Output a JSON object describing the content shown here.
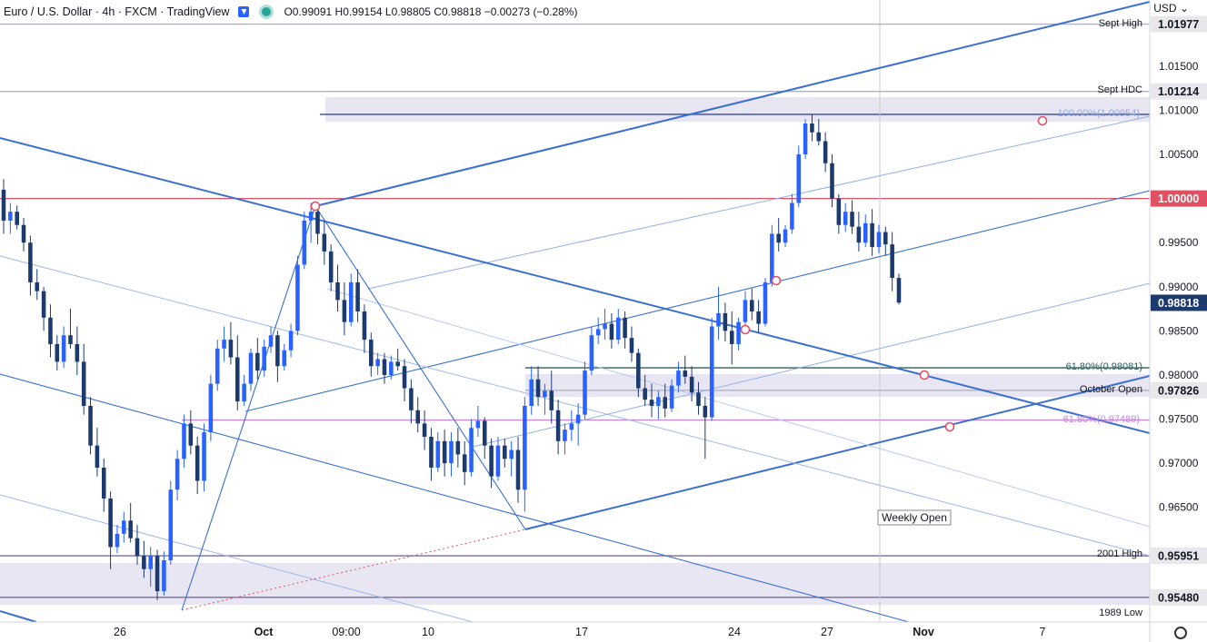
{
  "header": {
    "symbol": "Euro / U.S. Dollar · 4h · FXCM · TradingView",
    "open": "O0.99091",
    "high": "H0.99154",
    "low": "L0.98805",
    "close": "C0.98818",
    "change": "−0.00273 (−0.28%)",
    "currency": "USD"
  },
  "colors": {
    "bull": "#2962ff",
    "bear": "#1c3a6e",
    "trend": "#3a6fd1",
    "red": "#e05263",
    "zone": "#e9e6f4"
  },
  "chart_data": {
    "type": "candlestick",
    "x_ticks": [
      "26",
      "Oct",
      "09:00",
      "10",
      "17",
      "24",
      "27",
      "Nov",
      "7"
    ],
    "y_ticks": [
      1.015,
      1.01,
      1.005,
      0.995,
      0.99,
      0.985,
      0.98,
      0.975,
      0.97,
      0.965
    ],
    "y_range": [
      0.952,
      1.0225
    ],
    "price_badges": [
      {
        "value": "1.01977"
      },
      {
        "value": "1.01214"
      },
      {
        "value": "1.00000"
      },
      {
        "value": "0.98818"
      },
      {
        "value": "0.97826"
      },
      {
        "value": "0.95951"
      },
      {
        "value": "0.95480"
      }
    ],
    "level_labels": {
      "sept_high": "Sept High",
      "sept_hdc": "Sept HDC",
      "fib100": "100.00%(1.00954)",
      "fib618_a": "61.80%(0.98081)",
      "october_open": "October Open",
      "fib618_b": "61.80%(0.97489)",
      "high_2001": "2001 High",
      "low_1989": "1989 Low",
      "weekly_open": "Weekly Open"
    },
    "levels": {
      "sept_high": 1.01977,
      "sept_hdc": 1.01214,
      "fib100": 1.00954,
      "parity": 1.0,
      "fib618_a": 0.98081,
      "october_open": 0.97826,
      "fib618_b": 0.97489,
      "high_2001": 0.95951,
      "low_1989": 0.9548
    },
    "ohlc": [
      [
        1.001,
        1.0022,
        0.996,
        0.9975
      ],
      [
        0.9975,
        0.9995,
        0.996,
        0.9985
      ],
      [
        0.9985,
        0.9992,
        0.9965,
        0.997
      ],
      [
        0.997,
        0.9978,
        0.994,
        0.995
      ],
      [
        0.995,
        0.9958,
        0.989,
        0.9905
      ],
      [
        0.9905,
        0.992,
        0.9885,
        0.9895
      ],
      [
        0.9895,
        0.99,
        0.985,
        0.9865
      ],
      [
        0.9865,
        0.988,
        0.982,
        0.9835
      ],
      [
        0.9835,
        0.9845,
        0.9805,
        0.9815
      ],
      [
        0.9815,
        0.9855,
        0.9808,
        0.9845
      ],
      [
        0.9845,
        0.9875,
        0.983,
        0.9835
      ],
      [
        0.9835,
        0.9855,
        0.98,
        0.9815
      ],
      [
        0.9815,
        0.9835,
        0.9755,
        0.9765
      ],
      [
        0.9765,
        0.9775,
        0.971,
        0.972
      ],
      [
        0.972,
        0.974,
        0.9685,
        0.9695
      ],
      [
        0.9695,
        0.9705,
        0.9645,
        0.966
      ],
      [
        0.966,
        0.9668,
        0.958,
        0.9605
      ],
      [
        0.9605,
        0.963,
        0.9598,
        0.962
      ],
      [
        0.962,
        0.9645,
        0.961,
        0.9635
      ],
      [
        0.9635,
        0.9655,
        0.961,
        0.9615
      ],
      [
        0.9615,
        0.963,
        0.9585,
        0.9595
      ],
      [
        0.9595,
        0.9612,
        0.957,
        0.958
      ],
      [
        0.958,
        0.9605,
        0.956,
        0.9595
      ],
      [
        0.9595,
        0.9602,
        0.9545,
        0.9555
      ],
      [
        0.9555,
        0.96,
        0.955,
        0.959
      ],
      [
        0.959,
        0.968,
        0.9585,
        0.967
      ],
      [
        0.967,
        0.9715,
        0.9658,
        0.9705
      ],
      [
        0.9705,
        0.9755,
        0.9695,
        0.9745
      ],
      [
        0.9745,
        0.976,
        0.971,
        0.972
      ],
      [
        0.972,
        0.973,
        0.9665,
        0.968
      ],
      [
        0.968,
        0.9745,
        0.9668,
        0.9735
      ],
      [
        0.9735,
        0.98,
        0.9725,
        0.979
      ],
      [
        0.979,
        0.984,
        0.9782,
        0.983
      ],
      [
        0.983,
        0.9855,
        0.9815,
        0.984
      ],
      [
        0.984,
        0.986,
        0.9812,
        0.982
      ],
      [
        0.982,
        0.9845,
        0.976,
        0.977
      ],
      [
        0.977,
        0.98,
        0.9765,
        0.979
      ],
      [
        0.979,
        0.983,
        0.9782,
        0.9825
      ],
      [
        0.9825,
        0.9842,
        0.9795,
        0.9805
      ],
      [
        0.9805,
        0.984,
        0.9798,
        0.9832
      ],
      [
        0.9832,
        0.9855,
        0.9825,
        0.9845
      ],
      [
        0.9845,
        0.985,
        0.9792,
        0.981
      ],
      [
        0.981,
        0.9835,
        0.9805,
        0.9828
      ],
      [
        0.9828,
        0.9858,
        0.982,
        0.985
      ],
      [
        0.985,
        0.9935,
        0.9845,
        0.9925
      ],
      [
        0.9925,
        0.9985,
        0.992,
        0.9975
      ],
      [
        0.9975,
        0.9995,
        0.995,
        0.9985
      ],
      [
        0.9985,
        0.9992,
        0.9948,
        0.996
      ],
      [
        0.996,
        0.9975,
        0.9925,
        0.994
      ],
      [
        0.994,
        0.9948,
        0.9895,
        0.9905
      ],
      [
        0.9905,
        0.9925,
        0.9872,
        0.9885
      ],
      [
        0.9885,
        0.9905,
        0.9845,
        0.986
      ],
      [
        0.986,
        0.9915,
        0.9855,
        0.9905
      ],
      [
        0.9905,
        0.992,
        0.986,
        0.9872
      ],
      [
        0.9872,
        0.988,
        0.9825,
        0.984
      ],
      [
        0.984,
        0.9848,
        0.9798,
        0.981
      ],
      [
        0.981,
        0.9825,
        0.98,
        0.9818
      ],
      [
        0.9818,
        0.9825,
        0.979,
        0.98
      ],
      [
        0.98,
        0.9822,
        0.9795,
        0.9815
      ],
      [
        0.9815,
        0.983,
        0.9805,
        0.981
      ],
      [
        0.981,
        0.9818,
        0.977,
        0.9785
      ],
      [
        0.9785,
        0.9795,
        0.9745,
        0.976
      ],
      [
        0.976,
        0.9775,
        0.9735,
        0.9745
      ],
      [
        0.9745,
        0.976,
        0.9715,
        0.973
      ],
      [
        0.973,
        0.974,
        0.968,
        0.9695
      ],
      [
        0.9695,
        0.9735,
        0.969,
        0.9725
      ],
      [
        0.9725,
        0.9738,
        0.9685,
        0.97
      ],
      [
        0.97,
        0.9735,
        0.9685,
        0.9725
      ],
      [
        0.9725,
        0.974,
        0.9695,
        0.971
      ],
      [
        0.971,
        0.9725,
        0.9675,
        0.969
      ],
      [
        0.969,
        0.975,
        0.9685,
        0.974
      ],
      [
        0.974,
        0.9765,
        0.973,
        0.9748
      ],
      [
        0.9748,
        0.9752,
        0.9705,
        0.972
      ],
      [
        0.972,
        0.9728,
        0.9672,
        0.9685
      ],
      [
        0.9685,
        0.973,
        0.968,
        0.972
      ],
      [
        0.972,
        0.9728,
        0.9695,
        0.9705
      ],
      [
        0.9705,
        0.9725,
        0.9685,
        0.9715
      ],
      [
        0.9715,
        0.973,
        0.9655,
        0.967
      ],
      [
        0.967,
        0.9775,
        0.9645,
        0.9765
      ],
      [
        0.9765,
        0.981,
        0.9755,
        0.9795
      ],
      [
        0.9795,
        0.981,
        0.9765,
        0.9775
      ],
      [
        0.9775,
        0.979,
        0.9755,
        0.9782
      ],
      [
        0.9782,
        0.9805,
        0.9745,
        0.976
      ],
      [
        0.976,
        0.9772,
        0.971,
        0.9725
      ],
      [
        0.9725,
        0.9745,
        0.971,
        0.9738
      ],
      [
        0.9738,
        0.976,
        0.9725,
        0.9745
      ],
      [
        0.9745,
        0.9768,
        0.972,
        0.9755
      ],
      [
        0.9755,
        0.9815,
        0.975,
        0.9805
      ],
      [
        0.9805,
        0.9855,
        0.98,
        0.9845
      ],
      [
        0.9845,
        0.9865,
        0.9835,
        0.9852
      ],
      [
        0.9852,
        0.9875,
        0.984,
        0.9858
      ],
      [
        0.9858,
        0.987,
        0.983,
        0.984
      ],
      [
        0.984,
        0.9875,
        0.9835,
        0.9865
      ],
      [
        0.9865,
        0.9872,
        0.983,
        0.9842
      ],
      [
        0.9842,
        0.9855,
        0.9815,
        0.9825
      ],
      [
        0.9825,
        0.983,
        0.9775,
        0.9785
      ],
      [
        0.9785,
        0.98,
        0.9765,
        0.9772
      ],
      [
        0.9772,
        0.979,
        0.9752,
        0.9765
      ],
      [
        0.9765,
        0.9782,
        0.975,
        0.9775
      ],
      [
        0.9775,
        0.979,
        0.9752,
        0.9762
      ],
      [
        0.9762,
        0.9795,
        0.9758,
        0.9788
      ],
      [
        0.9788,
        0.9815,
        0.978,
        0.9805
      ],
      [
        0.9805,
        0.9822,
        0.979,
        0.9798
      ],
      [
        0.9798,
        0.981,
        0.977,
        0.978
      ],
      [
        0.978,
        0.9792,
        0.9755,
        0.9765
      ],
      [
        0.9765,
        0.9775,
        0.9705,
        0.9752
      ],
      [
        0.9752,
        0.9865,
        0.9748,
        0.9855
      ],
      [
        0.9855,
        0.99,
        0.984,
        0.987
      ],
      [
        0.987,
        0.9882,
        0.9838,
        0.985
      ],
      [
        0.985,
        0.9872,
        0.9812,
        0.9835
      ],
      [
        0.9835,
        0.9865,
        0.9828,
        0.986
      ],
      [
        0.986,
        0.9895,
        0.9855,
        0.9885
      ],
      [
        0.9885,
        0.9898,
        0.9862,
        0.9872
      ],
      [
        0.9872,
        0.9885,
        0.9848,
        0.9858
      ],
      [
        0.9858,
        0.991,
        0.9855,
        0.9905
      ],
      [
        0.9905,
        0.997,
        0.99,
        0.996
      ],
      [
        0.996,
        0.9978,
        0.994,
        0.995
      ],
      [
        0.995,
        0.997,
        0.9945,
        0.9965
      ],
      [
        0.9965,
        1.0005,
        0.996,
        0.9995
      ],
      [
        0.9995,
        1.006,
        0.999,
        1.005
      ],
      [
        1.005,
        1.009,
        1.0045,
        1.0085
      ],
      [
        1.0085,
        1.0095,
        1.0065,
        1.0075
      ],
      [
        1.0075,
        1.009,
        1.006,
        1.0065
      ],
      [
        1.0065,
        1.0075,
        1.003,
        1.004
      ],
      [
        1.004,
        1.005,
        0.999,
        1.0
      ],
      [
        1.0,
        1.0005,
        0.996,
        0.997
      ],
      [
        0.997,
        0.9995,
        0.9962,
        0.9985
      ],
      [
        0.9985,
        0.9998,
        0.996,
        0.9968
      ],
      [
        0.9968,
        0.9985,
        0.994,
        0.995
      ],
      [
        0.995,
        0.9982,
        0.9945,
        0.9972
      ],
      [
        0.9972,
        0.9988,
        0.9935,
        0.9945
      ],
      [
        0.9945,
        0.997,
        0.9938,
        0.9962
      ],
      [
        0.9962,
        0.9968,
        0.9935,
        0.9948
      ],
      [
        0.9948,
        0.9962,
        0.9895,
        0.991
      ],
      [
        0.991,
        0.9915,
        0.988,
        0.9882
      ]
    ]
  }
}
